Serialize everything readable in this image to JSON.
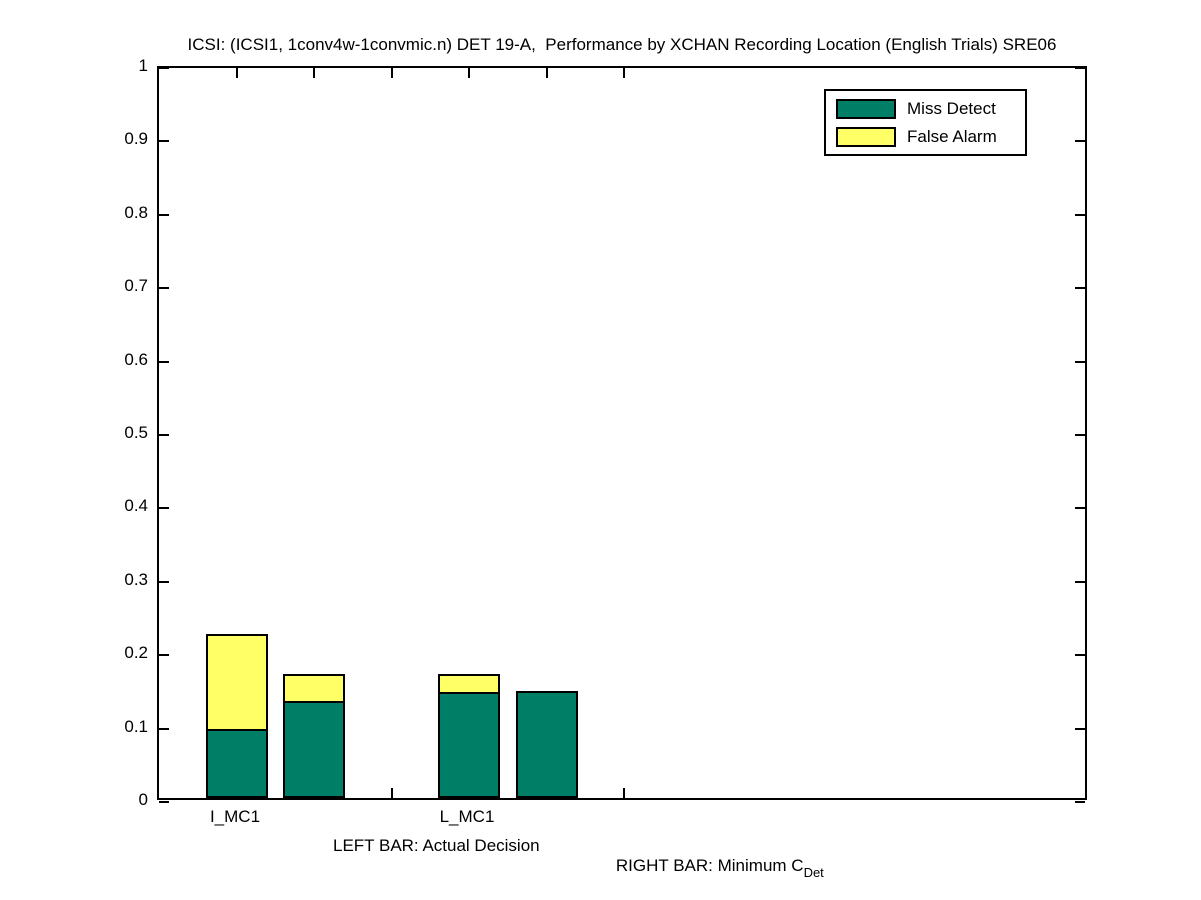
{
  "title": "ICSI: (ICSI1, 1conv4w-1convmic.n) DET 19-A,  Performance by XCHAN Recording Location (English Trials) SRE06",
  "legend": {
    "position": "top-right",
    "items": [
      {
        "label": "Miss Detect",
        "color": "#007F66"
      },
      {
        "label": "False Alarm",
        "color": "#FFFF66"
      }
    ]
  },
  "footnote": {
    "left": "LEFT BAR: Actual Decision",
    "right_prefix": "RIGHT BAR: Minimum C",
    "right_subscript": "Det"
  },
  "chart_data": {
    "type": "bar",
    "stacked": true,
    "title": "ICSI: (ICSI1, 1conv4w-1convmic.n) DET 19-A,  Performance by XCHAN Recording Location (English Trials) SRE06",
    "xlabel": "",
    "ylabel": "",
    "grid": false,
    "legend_position": "top-right",
    "ylim": [
      0,
      1
    ],
    "yticks": [
      0,
      0.1,
      0.2,
      0.3,
      0.4,
      0.5,
      0.6,
      0.7,
      0.8,
      0.9,
      1
    ],
    "ytick_labels": [
      "0",
      "0.1",
      "0.2",
      "0.3",
      "0.4",
      "0.5",
      "0.6",
      "0.7",
      "0.8",
      "0.9",
      "1"
    ],
    "xlim": [
      0,
      12
    ],
    "xticks": [
      1,
      2,
      3,
      4,
      5,
      6
    ],
    "xtick_labels": [
      "I_MC1",
      "",
      "",
      "L_MC1",
      "",
      ""
    ],
    "bar_width": 0.8,
    "categories": [
      "I_MC1",
      "L_MC1"
    ],
    "series_note": "left bar = Actual Decision, right bar = Minimum CDet",
    "colors": {
      "miss_detect": "#007F66",
      "false_alarm": "#FFFF66"
    },
    "bars": [
      {
        "group": "I_MC1",
        "bar": "Actual Decision",
        "x": 1,
        "miss_detect": 0.094,
        "false_alarm": 0.129
      },
      {
        "group": "I_MC1",
        "bar": "Minimum CDet",
        "x": 2,
        "miss_detect": 0.132,
        "false_alarm": 0.037
      },
      {
        "group": "L_MC1",
        "bar": "Actual Decision",
        "x": 4,
        "miss_detect": 0.145,
        "false_alarm": 0.024
      },
      {
        "group": "L_MC1",
        "bar": "Minimum CDet",
        "x": 5,
        "miss_detect": 0.146,
        "false_alarm": 0.0
      }
    ]
  }
}
